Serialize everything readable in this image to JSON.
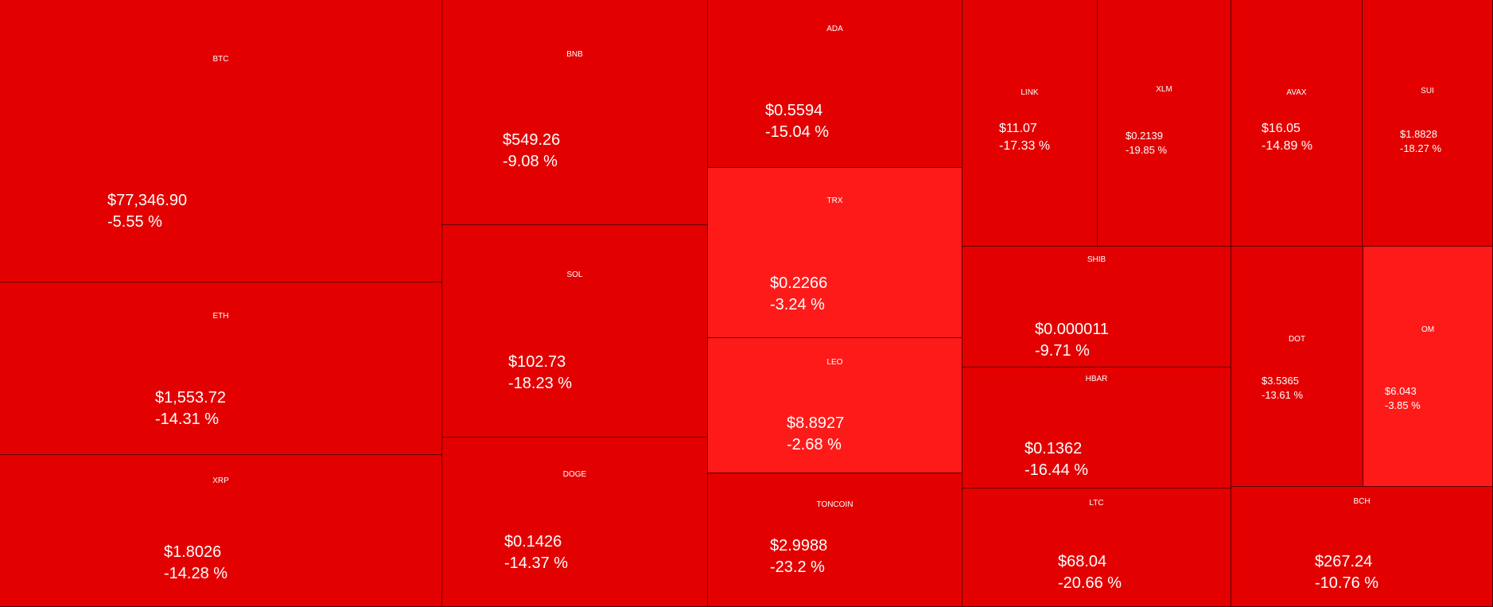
{
  "colors": {
    "strong_down": "#e30000",
    "mild_down": "#ff1a1a",
    "text": "#ffffff"
  },
  "tiles": [
    {
      "symbol": "BTC",
      "price": "$77,346.90",
      "change": "-5.55 %",
      "tone": "strong_down"
    },
    {
      "symbol": "ETH",
      "price": "$1,553.72",
      "change": "-14.31 %",
      "tone": "strong_down"
    },
    {
      "symbol": "XRP",
      "price": "$1.8026",
      "change": "-14.28 %",
      "tone": "strong_down"
    },
    {
      "symbol": "BNB",
      "price": "$549.26",
      "change": "-9.08 %",
      "tone": "strong_down"
    },
    {
      "symbol": "SOL",
      "price": "$102.73",
      "change": "-18.23 %",
      "tone": "strong_down"
    },
    {
      "symbol": "DOGE",
      "price": "$0.1426",
      "change": "-14.37 %",
      "tone": "strong_down"
    },
    {
      "symbol": "ADA",
      "price": "$0.5594",
      "change": "-15.04 %",
      "tone": "strong_down"
    },
    {
      "symbol": "TRX",
      "price": "$0.2266",
      "change": "-3.24 %",
      "tone": "mild_down"
    },
    {
      "symbol": "LEO",
      "price": "$8.8927",
      "change": "-2.68 %",
      "tone": "mild_down"
    },
    {
      "symbol": "TONCOIN",
      "price": "$2.9988",
      "change": "-23.2 %",
      "tone": "strong_down"
    },
    {
      "symbol": "LINK",
      "price": "$11.07",
      "change": "-17.33 %",
      "tone": "strong_down"
    },
    {
      "symbol": "XLM",
      "price": "$0.2139",
      "change": "-19.85 %",
      "tone": "strong_down"
    },
    {
      "symbol": "AVAX",
      "price": "$16.05",
      "change": "-14.89 %",
      "tone": "strong_down"
    },
    {
      "symbol": "SUI",
      "price": "$1.8828",
      "change": "-18.27 %",
      "tone": "strong_down"
    },
    {
      "symbol": "SHIB",
      "price": "$0.000011",
      "change": "-9.71 %",
      "tone": "strong_down"
    },
    {
      "symbol": "HBAR",
      "price": "$0.1362",
      "change": "-16.44 %",
      "tone": "strong_down"
    },
    {
      "symbol": "LTC",
      "price": "$68.04",
      "change": "-20.66 %",
      "tone": "strong_down"
    },
    {
      "symbol": "DOT",
      "price": "$3.5365",
      "change": "-13.61 %",
      "tone": "strong_down"
    },
    {
      "symbol": "OM",
      "price": "$6.043",
      "change": "-3.85 %",
      "tone": "mild_down"
    },
    {
      "symbol": "BCH",
      "price": "$267.24",
      "change": "-10.76 %",
      "tone": "strong_down"
    }
  ]
}
